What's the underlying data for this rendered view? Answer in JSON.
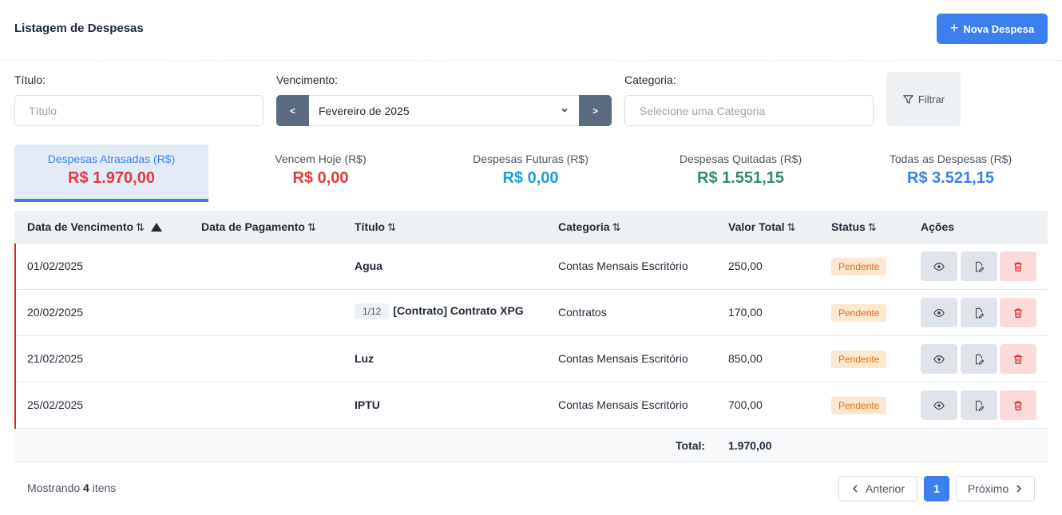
{
  "header": {
    "title": "Listagem de Despesas",
    "new_button": "Nova Despesa"
  },
  "filters": {
    "title_label": "Título:",
    "title_placeholder": "Título",
    "due_label": "Vencimento:",
    "prev": "<",
    "month": "Fevereiro de 2025",
    "next": ">",
    "category_label": "Categoria:",
    "category_placeholder": "Selecione uma Categoria",
    "filter_button": "Filtrar"
  },
  "summary": [
    {
      "label": "Despesas Atrasadas (R$)",
      "value": "R$ 1.970,00",
      "color": "#e23a3a",
      "active": true
    },
    {
      "label": "Vencem Hoje (R$)",
      "value": "R$ 0,00",
      "color": "#e23a3a",
      "active": false
    },
    {
      "label": "Despesas Futuras (R$)",
      "value": "R$ 0,00",
      "color": "#1a9ee0",
      "active": false
    },
    {
      "label": "Despesas Quitadas (R$)",
      "value": "R$ 1.551,15",
      "color": "#2e8b6e",
      "active": false
    },
    {
      "label": "Todas as Despesas (R$)",
      "value": "R$ 3.521,15",
      "color": "#3b7ff0",
      "active": false
    }
  ],
  "table": {
    "columns": [
      "Data de Vencimento",
      "Data de Pagamento",
      "Título",
      "Categoria",
      "Valor Total",
      "Status",
      "Ações"
    ],
    "rows": [
      {
        "due": "01/02/2025",
        "paid": "",
        "parcel": "",
        "title": "Agua",
        "category": "Contas Mensais Escritório",
        "value": "250,00",
        "status": "Pendente"
      },
      {
        "due": "20/02/2025",
        "paid": "",
        "parcel": "1/12",
        "title": "[Contrato] Contrato XPG",
        "category": "Contratos",
        "value": "170,00",
        "status": "Pendente"
      },
      {
        "due": "21/02/2025",
        "paid": "",
        "parcel": "",
        "title": "Luz",
        "category": "Contas Mensais Escritório",
        "value": "850,00",
        "status": "Pendente"
      },
      {
        "due": "25/02/2025",
        "paid": "",
        "parcel": "",
        "title": "IPTU",
        "category": "Contas Mensais Escritório",
        "value": "700,00",
        "status": "Pendente"
      }
    ],
    "total_label": "Total:",
    "total_value": "1.970,00"
  },
  "footer": {
    "showing_prefix": "Mostrando",
    "count": "4",
    "showing_suffix": "itens",
    "prev": "Anterior",
    "page": "1",
    "next": "Próximo"
  }
}
